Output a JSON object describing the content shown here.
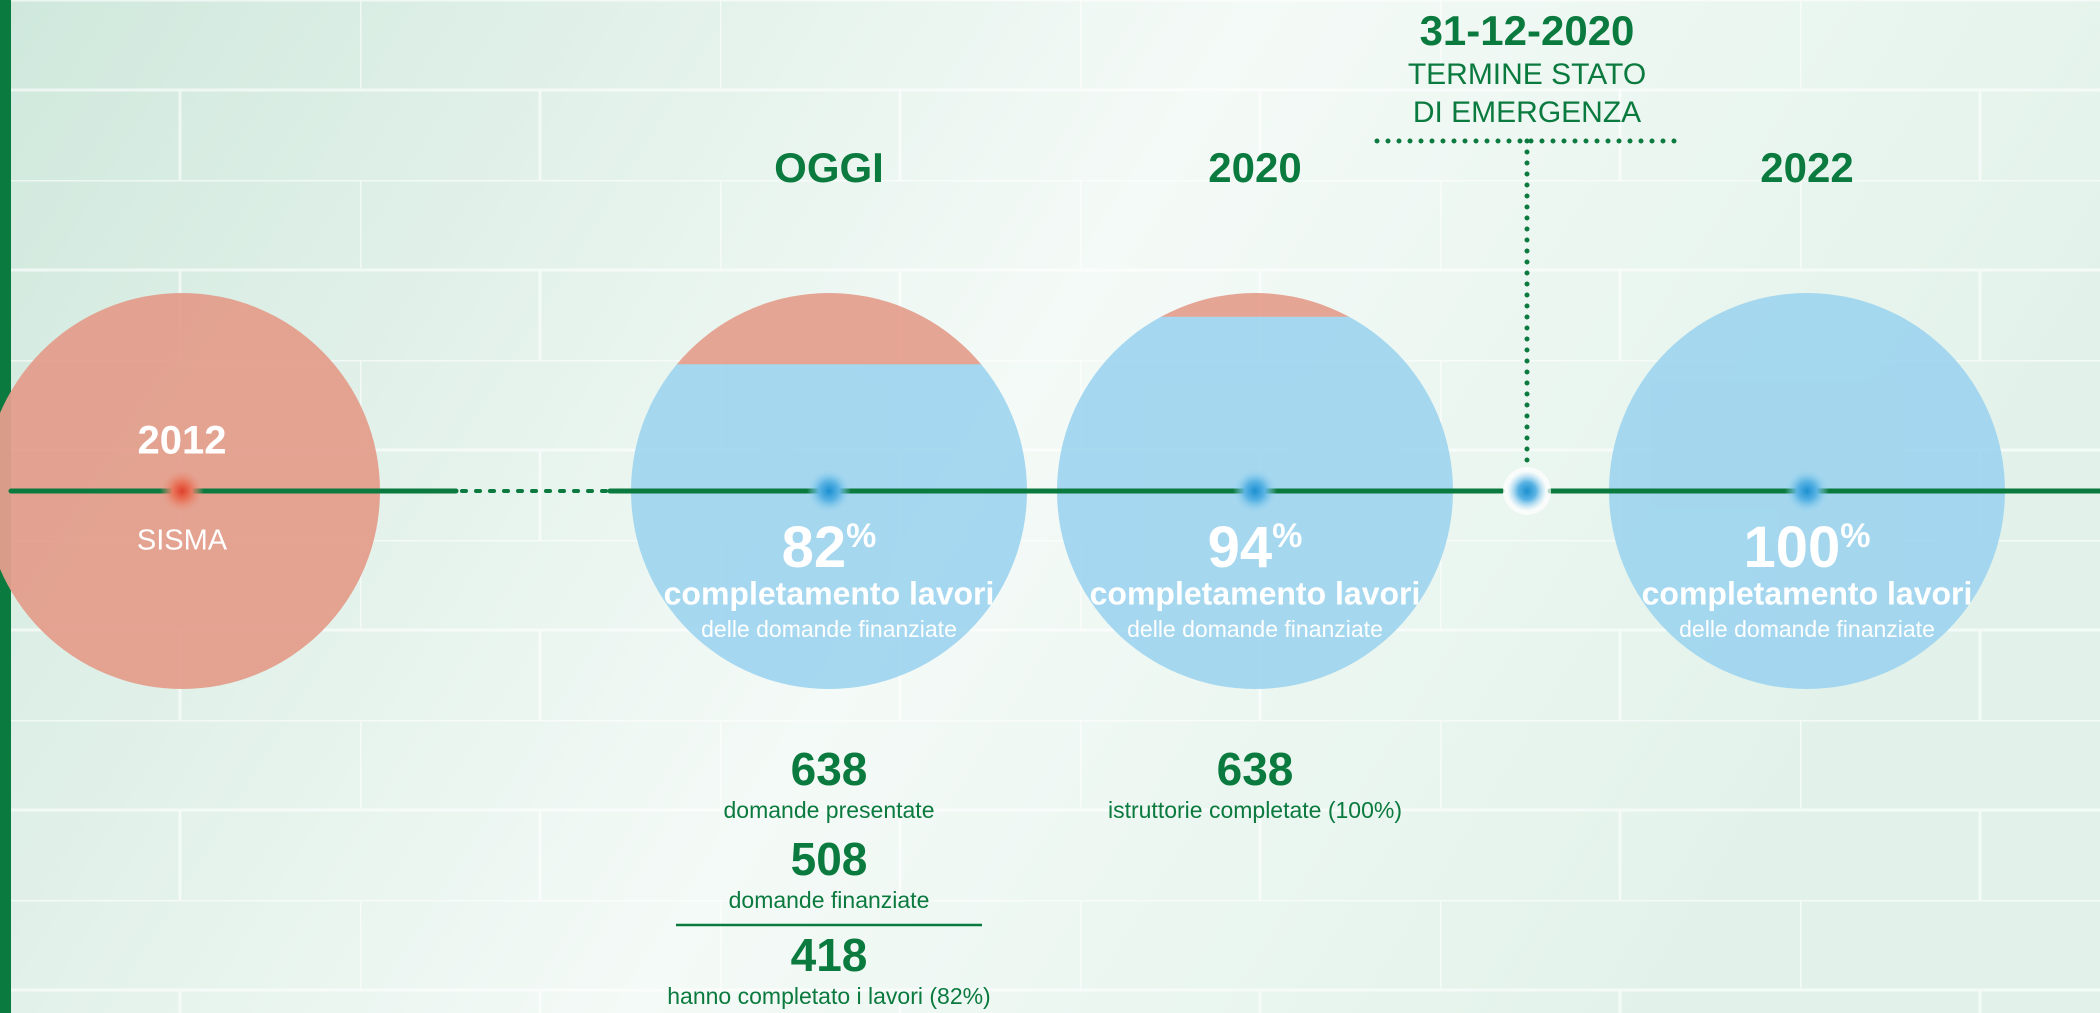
{
  "emergency": {
    "date": "31-12-2020",
    "lines": [
      "TERMINE STATO",
      "DI EMERGENZA"
    ]
  },
  "nodes": [
    {
      "year": "2012",
      "label": "SISMA"
    },
    {
      "header": "OGGI",
      "percent": 82,
      "percent_sign": "%",
      "title": "completamento lavori",
      "subtitle": "delle domande finanziate",
      "stats": [
        {
          "value": 638,
          "label": "domande presentate"
        },
        {
          "value": 508,
          "label": "domande finanziate"
        },
        {
          "value": 418,
          "label": "hanno completato i lavori (82%)"
        }
      ]
    },
    {
      "header": "2020",
      "percent": 94,
      "percent_sign": "%",
      "title": "completamento lavori",
      "subtitle": "delle domande finanziate",
      "stats": [
        {
          "value": 638,
          "label": "istruttorie completate (100%)"
        }
      ]
    },
    {
      "header": "2022",
      "percent": 100,
      "percent_sign": "%",
      "title": "completamento lavori",
      "subtitle": "delle domande finanziate"
    }
  ]
}
